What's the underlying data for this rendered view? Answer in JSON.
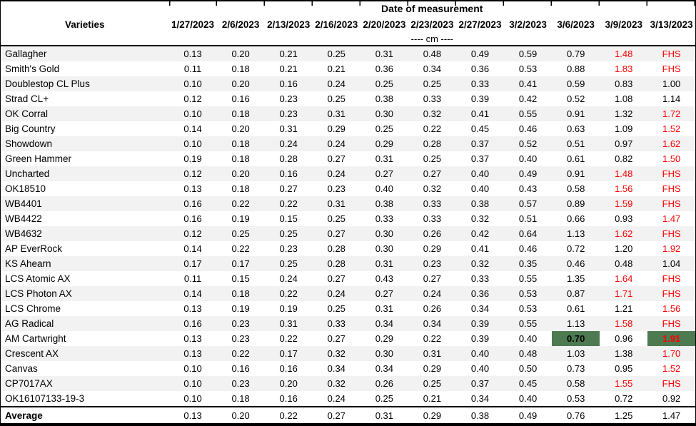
{
  "colors": {
    "red": "#FF0000",
    "green_fill": "#4D7A50",
    "stripe": "#F2F2F2"
  },
  "table": {
    "title": "Date of measurement",
    "varieties_header": "Varieties",
    "unit_label": "---- cm ----",
    "dates": [
      "1/27/2023",
      "2/6/2023",
      "2/13/2023",
      "2/16/2023",
      "2/20/2023",
      "2/23/2023",
      "2/27/2023",
      "3/2/2023",
      "3/6/2023",
      "3/9/2023",
      "3/13/2023"
    ],
    "rows": [
      {
        "name": "Gallagher",
        "cells": [
          {
            "v": "0.13"
          },
          {
            "v": "0.20"
          },
          {
            "v": "0.21"
          },
          {
            "v": "0.25"
          },
          {
            "v": "0.31"
          },
          {
            "v": "0.48"
          },
          {
            "v": "0.49"
          },
          {
            "v": "0.59"
          },
          {
            "v": "0.79"
          },
          {
            "v": "1.48",
            "s": "red"
          },
          {
            "v": "FHS",
            "s": "red"
          }
        ]
      },
      {
        "name": "Smith's Gold",
        "cells": [
          {
            "v": "0.11"
          },
          {
            "v": "0.18"
          },
          {
            "v": "0.21"
          },
          {
            "v": "0.21"
          },
          {
            "v": "0.36"
          },
          {
            "v": "0.34"
          },
          {
            "v": "0.36"
          },
          {
            "v": "0.53"
          },
          {
            "v": "0.88"
          },
          {
            "v": "1.83",
            "s": "red"
          },
          {
            "v": "FHS",
            "s": "red"
          }
        ]
      },
      {
        "name": "Doublestop CL Plus",
        "cells": [
          {
            "v": "0.10"
          },
          {
            "v": "0.20"
          },
          {
            "v": "0.16"
          },
          {
            "v": "0.24"
          },
          {
            "v": "0.25"
          },
          {
            "v": "0.25"
          },
          {
            "v": "0.33"
          },
          {
            "v": "0.41"
          },
          {
            "v": "0.59"
          },
          {
            "v": "0.83"
          },
          {
            "v": "1.00"
          }
        ]
      },
      {
        "name": "Strad CL+",
        "cells": [
          {
            "v": "0.12"
          },
          {
            "v": "0.16"
          },
          {
            "v": "0.23"
          },
          {
            "v": "0.25"
          },
          {
            "v": "0.38"
          },
          {
            "v": "0.33"
          },
          {
            "v": "0.39"
          },
          {
            "v": "0.42"
          },
          {
            "v": "0.52"
          },
          {
            "v": "1.08"
          },
          {
            "v": "1.14"
          }
        ]
      },
      {
        "name": "OK Corral",
        "cells": [
          {
            "v": "0.10"
          },
          {
            "v": "0.18"
          },
          {
            "v": "0.23"
          },
          {
            "v": "0.31"
          },
          {
            "v": "0.30"
          },
          {
            "v": "0.32"
          },
          {
            "v": "0.41"
          },
          {
            "v": "0.55"
          },
          {
            "v": "0.91"
          },
          {
            "v": "1.32"
          },
          {
            "v": "1.72",
            "s": "red"
          }
        ]
      },
      {
        "name": "Big Country",
        "cells": [
          {
            "v": "0.14"
          },
          {
            "v": "0.20"
          },
          {
            "v": "0.31"
          },
          {
            "v": "0.29"
          },
          {
            "v": "0.25"
          },
          {
            "v": "0.22"
          },
          {
            "v": "0.45"
          },
          {
            "v": "0.46"
          },
          {
            "v": "0.63"
          },
          {
            "v": "1.09"
          },
          {
            "v": "1.52",
            "s": "red"
          }
        ]
      },
      {
        "name": "Showdown",
        "cells": [
          {
            "v": "0.10"
          },
          {
            "v": "0.18"
          },
          {
            "v": "0.24"
          },
          {
            "v": "0.24"
          },
          {
            "v": "0.29"
          },
          {
            "v": "0.28"
          },
          {
            "v": "0.37"
          },
          {
            "v": "0.52"
          },
          {
            "v": "0.51"
          },
          {
            "v": "0.97"
          },
          {
            "v": "1.62",
            "s": "red"
          }
        ]
      },
      {
        "name": "Green Hammer",
        "cells": [
          {
            "v": "0.19"
          },
          {
            "v": "0.18"
          },
          {
            "v": "0.28"
          },
          {
            "v": "0.27"
          },
          {
            "v": "0.31"
          },
          {
            "v": "0.25"
          },
          {
            "v": "0.37"
          },
          {
            "v": "0.40"
          },
          {
            "v": "0.61"
          },
          {
            "v": "0.82"
          },
          {
            "v": "1.50",
            "s": "red"
          }
        ]
      },
      {
        "name": "Uncharted",
        "cells": [
          {
            "v": "0.12"
          },
          {
            "v": "0.20"
          },
          {
            "v": "0.16"
          },
          {
            "v": "0.24"
          },
          {
            "v": "0.27"
          },
          {
            "v": "0.27"
          },
          {
            "v": "0.40"
          },
          {
            "v": "0.49"
          },
          {
            "v": "0.91"
          },
          {
            "v": "1.48",
            "s": "red"
          },
          {
            "v": "FHS",
            "s": "red"
          }
        ]
      },
      {
        "name": "OK18510",
        "cells": [
          {
            "v": "0.13"
          },
          {
            "v": "0.18"
          },
          {
            "v": "0.27"
          },
          {
            "v": "0.23"
          },
          {
            "v": "0.40"
          },
          {
            "v": "0.32"
          },
          {
            "v": "0.40"
          },
          {
            "v": "0.43"
          },
          {
            "v": "0.58"
          },
          {
            "v": "1.56",
            "s": "red"
          },
          {
            "v": "FHS",
            "s": "red"
          }
        ]
      },
      {
        "name": "WB4401",
        "cells": [
          {
            "v": "0.16"
          },
          {
            "v": "0.22"
          },
          {
            "v": "0.22"
          },
          {
            "v": "0.31"
          },
          {
            "v": "0.38"
          },
          {
            "v": "0.33"
          },
          {
            "v": "0.38"
          },
          {
            "v": "0.57"
          },
          {
            "v": "0.89"
          },
          {
            "v": "1.59",
            "s": "red"
          },
          {
            "v": "FHS",
            "s": "red"
          }
        ]
      },
      {
        "name": "WB4422",
        "cells": [
          {
            "v": "0.16"
          },
          {
            "v": "0.19"
          },
          {
            "v": "0.15"
          },
          {
            "v": "0.25"
          },
          {
            "v": "0.33"
          },
          {
            "v": "0.33"
          },
          {
            "v": "0.32"
          },
          {
            "v": "0.51"
          },
          {
            "v": "0.66"
          },
          {
            "v": "0.93"
          },
          {
            "v": "1.47",
            "s": "red"
          }
        ]
      },
      {
        "name": "WB4632",
        "cells": [
          {
            "v": "0.12"
          },
          {
            "v": "0.25"
          },
          {
            "v": "0.25"
          },
          {
            "v": "0.27"
          },
          {
            "v": "0.30"
          },
          {
            "v": "0.26"
          },
          {
            "v": "0.42"
          },
          {
            "v": "0.64"
          },
          {
            "v": "1.13"
          },
          {
            "v": "1.62",
            "s": "red"
          },
          {
            "v": "FHS",
            "s": "red"
          }
        ]
      },
      {
        "name": "AP EverRock",
        "cells": [
          {
            "v": "0.14"
          },
          {
            "v": "0.22"
          },
          {
            "v": "0.23"
          },
          {
            "v": "0.28"
          },
          {
            "v": "0.30"
          },
          {
            "v": "0.29"
          },
          {
            "v": "0.41"
          },
          {
            "v": "0.46"
          },
          {
            "v": "0.72"
          },
          {
            "v": "1.20"
          },
          {
            "v": "1.92",
            "s": "red"
          }
        ]
      },
      {
        "name": "KS Ahearn",
        "cells": [
          {
            "v": "0.17"
          },
          {
            "v": "0.17"
          },
          {
            "v": "0.25"
          },
          {
            "v": "0.28"
          },
          {
            "v": "0.31"
          },
          {
            "v": "0.23"
          },
          {
            "v": "0.32"
          },
          {
            "v": "0.35"
          },
          {
            "v": "0.46"
          },
          {
            "v": "0.48"
          },
          {
            "v": "1.04"
          }
        ]
      },
      {
        "name": "LCS Atomic AX",
        "cells": [
          {
            "v": "0.11"
          },
          {
            "v": "0.15"
          },
          {
            "v": "0.24"
          },
          {
            "v": "0.27"
          },
          {
            "v": "0.43"
          },
          {
            "v": "0.27"
          },
          {
            "v": "0.33"
          },
          {
            "v": "0.55"
          },
          {
            "v": "1.35"
          },
          {
            "v": "1.64",
            "s": "red"
          },
          {
            "v": "FHS",
            "s": "red"
          }
        ]
      },
      {
        "name": "LCS Photon AX",
        "cells": [
          {
            "v": "0.14"
          },
          {
            "v": "0.18"
          },
          {
            "v": "0.22"
          },
          {
            "v": "0.24"
          },
          {
            "v": "0.27"
          },
          {
            "v": "0.24"
          },
          {
            "v": "0.36"
          },
          {
            "v": "0.53"
          },
          {
            "v": "0.87"
          },
          {
            "v": "1.71",
            "s": "red"
          },
          {
            "v": "FHS",
            "s": "red"
          }
        ]
      },
      {
        "name": "LCS Chrome",
        "cells": [
          {
            "v": "0.13"
          },
          {
            "v": "0.19"
          },
          {
            "v": "0.19"
          },
          {
            "v": "0.25"
          },
          {
            "v": "0.31"
          },
          {
            "v": "0.26"
          },
          {
            "v": "0.34"
          },
          {
            "v": "0.53"
          },
          {
            "v": "0.61"
          },
          {
            "v": "1.21"
          },
          {
            "v": "1.56",
            "s": "red"
          }
        ]
      },
      {
        "name": "AG Radical",
        "cells": [
          {
            "v": "0.16"
          },
          {
            "v": "0.23"
          },
          {
            "v": "0.31"
          },
          {
            "v": "0.33"
          },
          {
            "v": "0.34"
          },
          {
            "v": "0.34"
          },
          {
            "v": "0.39"
          },
          {
            "v": "0.55"
          },
          {
            "v": "1.13"
          },
          {
            "v": "1.58",
            "s": "red"
          },
          {
            "v": "FHS",
            "s": "red"
          }
        ]
      },
      {
        "name": "AM Cartwright",
        "cells": [
          {
            "v": "0.13"
          },
          {
            "v": "0.23"
          },
          {
            "v": "0.22"
          },
          {
            "v": "0.27"
          },
          {
            "v": "0.29"
          },
          {
            "v": "0.22"
          },
          {
            "v": "0.39"
          },
          {
            "v": "0.40"
          },
          {
            "v": "0.70",
            "s": "green"
          },
          {
            "v": "0.96"
          },
          {
            "v": "1.91",
            "s": "green-red"
          }
        ]
      },
      {
        "name": "Crescent AX",
        "cells": [
          {
            "v": "0.13"
          },
          {
            "v": "0.22"
          },
          {
            "v": "0.17"
          },
          {
            "v": "0.32"
          },
          {
            "v": "0.30"
          },
          {
            "v": "0.31"
          },
          {
            "v": "0.40"
          },
          {
            "v": "0.48"
          },
          {
            "v": "1.03"
          },
          {
            "v": "1.38"
          },
          {
            "v": "1.70",
            "s": "red"
          }
        ]
      },
      {
        "name": "Canvas",
        "cells": [
          {
            "v": "0.10"
          },
          {
            "v": "0.16"
          },
          {
            "v": "0.16"
          },
          {
            "v": "0.34"
          },
          {
            "v": "0.34"
          },
          {
            "v": "0.29"
          },
          {
            "v": "0.40"
          },
          {
            "v": "0.50"
          },
          {
            "v": "0.73"
          },
          {
            "v": "0.95"
          },
          {
            "v": "1.52",
            "s": "red"
          }
        ]
      },
      {
        "name": "CP7017AX",
        "cells": [
          {
            "v": "0.10"
          },
          {
            "v": "0.23"
          },
          {
            "v": "0.20"
          },
          {
            "v": "0.32"
          },
          {
            "v": "0.26"
          },
          {
            "v": "0.25"
          },
          {
            "v": "0.37"
          },
          {
            "v": "0.45"
          },
          {
            "v": "0.58"
          },
          {
            "v": "1.55",
            "s": "red"
          },
          {
            "v": "FHS",
            "s": "red"
          }
        ]
      },
      {
        "name": "OK16107133-19-3",
        "cells": [
          {
            "v": "0.10"
          },
          {
            "v": "0.18"
          },
          {
            "v": "0.16"
          },
          {
            "v": "0.24"
          },
          {
            "v": "0.25"
          },
          {
            "v": "0.21"
          },
          {
            "v": "0.34"
          },
          {
            "v": "0.40"
          },
          {
            "v": "0.53"
          },
          {
            "v": "0.72"
          },
          {
            "v": "0.92"
          }
        ]
      }
    ],
    "average": {
      "label": "Average",
      "cells": [
        {
          "v": "0.13"
        },
        {
          "v": "0.20"
        },
        {
          "v": "0.22"
        },
        {
          "v": "0.27"
        },
        {
          "v": "0.31"
        },
        {
          "v": "0.29"
        },
        {
          "v": "0.38"
        },
        {
          "v": "0.49"
        },
        {
          "v": "0.76"
        },
        {
          "v": "1.25"
        },
        {
          "v": "1.47"
        }
      ]
    }
  }
}
